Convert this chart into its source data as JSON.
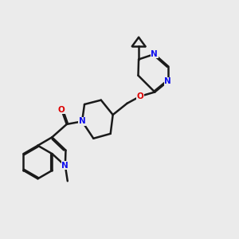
{
  "bg_color": "#ebebeb",
  "bond_color": "#1a1a1a",
  "N_color": "#1010ee",
  "O_color": "#dd0000",
  "lw": 1.8,
  "dbo": 0.055,
  "figsize": [
    3.0,
    3.0
  ],
  "dpi": 100,
  "xlim": [
    0,
    10
  ],
  "ylim": [
    0,
    10
  ]
}
